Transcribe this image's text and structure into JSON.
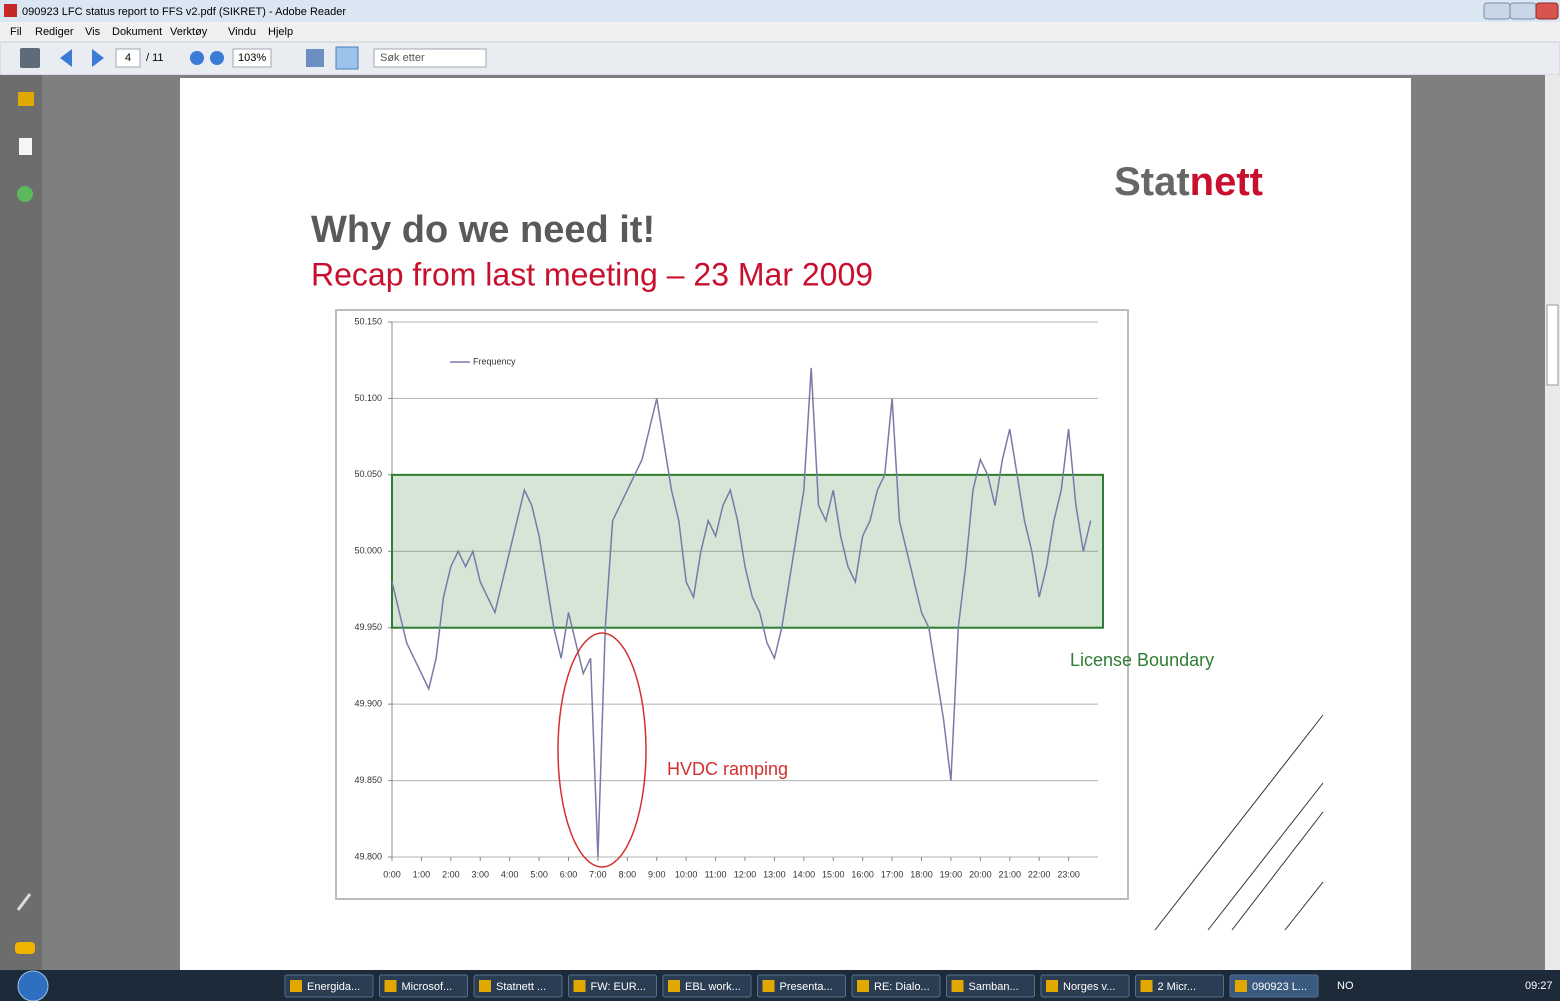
{
  "window": {
    "title": "090923 LFC status report to FFS v2.pdf (SIKRET) - Adobe Reader"
  },
  "menu": [
    "Fil",
    "Rediger",
    "Vis",
    "Dokument",
    "Verktøy",
    "Vindu",
    "Hjelp"
  ],
  "toolbar": {
    "page": "4",
    "page_count": "/ 11",
    "zoom": "103%",
    "search": "Søk etter"
  },
  "slide": {
    "logo": [
      "Stat",
      "nett"
    ],
    "heading": "Why do we need it!",
    "subheading": "Recap from last meeting – 23 Mar 2009"
  },
  "chart_data": {
    "type": "line",
    "series": [
      {
        "name": "Frequency",
        "color": "#7a7aa8",
        "x": [
          0,
          0.25,
          0.5,
          0.75,
          1,
          1.25,
          1.5,
          1.75,
          2,
          2.25,
          2.5,
          2.75,
          3,
          3.25,
          3.5,
          3.75,
          4,
          4.25,
          4.5,
          4.75,
          5,
          5.25,
          5.5,
          5.75,
          6,
          6.25,
          6.5,
          6.75,
          7,
          7.25,
          7.5,
          7.75,
          8,
          8.25,
          8.5,
          8.75,
          9,
          9.25,
          9.5,
          9.75,
          10,
          10.25,
          10.5,
          10.75,
          11,
          11.25,
          11.5,
          11.75,
          12,
          12.25,
          12.5,
          12.75,
          13,
          13.25,
          13.5,
          13.75,
          14,
          14.25,
          14.5,
          14.75,
          15,
          15.25,
          15.5,
          15.75,
          16,
          16.25,
          16.5,
          16.75,
          17,
          17.25,
          17.5,
          17.75,
          18,
          18.25,
          18.5,
          18.75,
          19,
          19.25,
          19.5,
          19.75,
          20,
          20.25,
          20.5,
          20.75,
          21,
          21.25,
          21.5,
          21.75,
          22,
          22.25,
          22.5,
          22.75,
          23,
          23.25,
          23.5,
          23.75
        ],
        "values": [
          49.98,
          49.96,
          49.94,
          49.93,
          49.92,
          49.91,
          49.93,
          49.97,
          49.99,
          50.0,
          49.99,
          50.0,
          49.98,
          49.97,
          49.96,
          49.98,
          50.0,
          50.02,
          50.04,
          50.03,
          50.01,
          49.98,
          49.95,
          49.93,
          49.96,
          49.94,
          49.92,
          49.93,
          49.8,
          49.95,
          50.02,
          50.03,
          50.04,
          50.05,
          50.06,
          50.08,
          50.1,
          50.07,
          50.04,
          50.02,
          49.98,
          49.97,
          50.0,
          50.02,
          50.01,
          50.03,
          50.04,
          50.02,
          49.99,
          49.97,
          49.96,
          49.94,
          49.93,
          49.95,
          49.98,
          50.01,
          50.04,
          50.12,
          50.03,
          50.02,
          50.04,
          50.01,
          49.99,
          49.98,
          50.01,
          50.02,
          50.04,
          50.05,
          50.1,
          50.02,
          50.0,
          49.98,
          49.96,
          49.95,
          49.92,
          49.89,
          49.85,
          49.95,
          49.99,
          50.04,
          50.06,
          50.05,
          50.03,
          50.06,
          50.08,
          50.05,
          50.02,
          50.0,
          49.97,
          49.99,
          50.02,
          50.04,
          50.08,
          50.03,
          50.0,
          50.02
        ]
      }
    ],
    "xlim": [
      0,
      24
    ],
    "xticks": [
      {
        "value": 0,
        "label": "0:00"
      },
      {
        "value": 1,
        "label": "1:00"
      },
      {
        "value": 2,
        "label": "2:00"
      },
      {
        "value": 3,
        "label": "3:00"
      },
      {
        "value": 4,
        "label": "4:00"
      },
      {
        "value": 5,
        "label": "5:00"
      },
      {
        "value": 6,
        "label": "6:00"
      },
      {
        "value": 7,
        "label": "7:00"
      },
      {
        "value": 8,
        "label": "8:00"
      },
      {
        "value": 9,
        "label": "9:00"
      },
      {
        "value": 10,
        "label": "10:00"
      },
      {
        "value": 11,
        "label": "11:00"
      },
      {
        "value": 12,
        "label": "12:00"
      },
      {
        "value": 13,
        "label": "13:00"
      },
      {
        "value": 14,
        "label": "14:00"
      },
      {
        "value": 15,
        "label": "15:00"
      },
      {
        "value": 16,
        "label": "16:00"
      },
      {
        "value": 17,
        "label": "17:00"
      },
      {
        "value": 18,
        "label": "18:00"
      },
      {
        "value": 19,
        "label": "19:00"
      },
      {
        "value": 20,
        "label": "20:00"
      },
      {
        "value": 21,
        "label": "21:00"
      },
      {
        "value": 22,
        "label": "22:00"
      },
      {
        "value": 23,
        "label": "23:00"
      }
    ],
    "ylim": [
      49.8,
      50.15
    ],
    "yticks": [
      {
        "value": 49.8,
        "label": "49.800"
      },
      {
        "value": 49.85,
        "label": "49.850"
      },
      {
        "value": 49.9,
        "label": "49.900"
      },
      {
        "value": 49.95,
        "label": "49.950"
      },
      {
        "value": 50.0,
        "label": "50.000"
      },
      {
        "value": 50.05,
        "label": "50.050"
      },
      {
        "value": 50.1,
        "label": "50.100"
      },
      {
        "value": 50.15,
        "label": "50.150"
      }
    ],
    "grid": true,
    "legend": "upper left",
    "band": [
      49.95,
      50.05
    ],
    "band_color": "#2e7d32",
    "annotations": [
      "License Boundary",
      "HVDC ramping"
    ]
  },
  "taskbar": [
    "Energida...",
    "Microsof...",
    "Statnett ...",
    "FW: EUR...",
    "EBL work...",
    "Presenta...",
    "RE: Dialo...",
    "Samban...",
    "Norges v...",
    "2 Micr...",
    "090923 L..."
  ],
  "tray": {
    "lang": "NO",
    "clock": "09:27"
  }
}
